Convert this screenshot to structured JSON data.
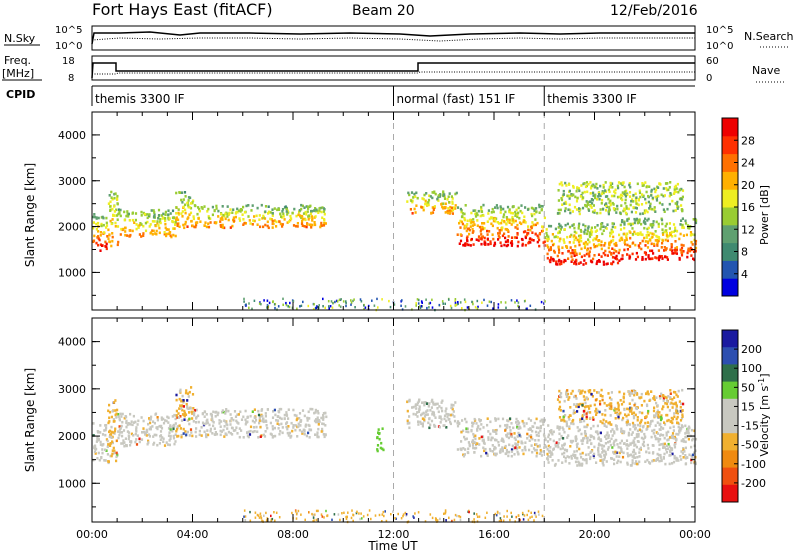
{
  "header": {
    "title": "Fort Hays East (fitACF)",
    "beam": "Beam 20",
    "date": "12/Feb/2016"
  },
  "labels": {
    "nsky": "N.Sky",
    "freq": "Freq.",
    "mhz": "[MHz]",
    "cpid": "CPID",
    "nsearch": "N.Search",
    "nave": "Nave",
    "x_axis": "Time UT",
    "y_axis_power": "Slant Range [km]",
    "y_axis_velocity": "Slant Range [km]"
  },
  "noise_panel": {
    "left_ticks": [
      "10^5",
      "10^0"
    ],
    "right_ticks": [
      "10^5",
      "10^0"
    ]
  },
  "freq_panel": {
    "left_ticks": [
      "18",
      "8"
    ],
    "right_ticks": [
      "60",
      "0"
    ]
  },
  "cpid_segments": [
    {
      "start_hour": 0.0,
      "end_hour": 12.0,
      "label": "themis 3300 IF"
    },
    {
      "start_hour": 12.0,
      "end_hour": 18.0,
      "label": "normal (fast) 151 IF"
    },
    {
      "start_hour": 18.0,
      "end_hour": 24.0,
      "label": "themis 3300 IF"
    }
  ],
  "colors": {
    "power_scale": [
      "#0000e0",
      "#2255b0",
      "#3f8a70",
      "#5fa070",
      "#99cc33",
      "#eeee22",
      "#ffb000",
      "#ff7000",
      "#ff3000",
      "#ee0000"
    ],
    "velocity_scale": [
      "#1a1aa0",
      "#2d4fb0",
      "#2f6f4a",
      "#66cc33",
      "#c8c8c0",
      "#c8c8c0",
      "#f0b030",
      "#f08a10",
      "#f05010",
      "#e81010"
    ]
  },
  "chart_data": [
    {
      "type": "heatmap",
      "name": "power",
      "xlabel": "Time UT",
      "ylabel": "Slant Range [km]",
      "xlim": [
        0,
        24
      ],
      "ylim": [
        180,
        4500
      ],
      "x_tick_labels": [
        "00:00",
        "04:00",
        "08:00",
        "12:00",
        "16:00",
        "20:00",
        "00:00"
      ],
      "x_tick_values": [
        0,
        4,
        8,
        12,
        16,
        20,
        24
      ],
      "y_tick_labels": [
        "1000",
        "2000",
        "3000",
        "4000"
      ],
      "y_tick_values": [
        1000,
        2000,
        3000,
        4000
      ],
      "colorbar": {
        "label": "Power [dB]",
        "range": [
          0,
          32
        ],
        "tick_labels": [
          "4",
          "8",
          "12",
          "16",
          "20",
          "24",
          "28"
        ],
        "tick_values": [
          4,
          8,
          12,
          16,
          20,
          24,
          28
        ]
      },
      "dashed_lines_hours": [
        12,
        18
      ],
      "echo_regions": [
        {
          "t0": 0.0,
          "t1": 0.6,
          "r_lo": 1500,
          "r_hi": 2300,
          "level": "high"
        },
        {
          "t0": 0.6,
          "t1": 1.0,
          "r_lo": 1600,
          "r_hi": 2800,
          "level": "mid"
        },
        {
          "t0": 1.0,
          "t1": 3.3,
          "r_lo": 1800,
          "r_hi": 2400,
          "level": "mid"
        },
        {
          "t0": 3.3,
          "t1": 4.0,
          "r_lo": 2000,
          "r_hi": 2800,
          "level": "mid"
        },
        {
          "t0": 4.0,
          "t1": 9.3,
          "r_lo": 2000,
          "r_hi": 2500,
          "level": "mid"
        },
        {
          "t0": 12.5,
          "t1": 14.5,
          "r_lo": 2300,
          "r_hi": 2800,
          "level": "mid"
        },
        {
          "t0": 14.5,
          "t1": 18.0,
          "r_lo": 1600,
          "r_hi": 2500,
          "level": "high"
        },
        {
          "t0": 18.0,
          "t1": 21.0,
          "r_lo": 1200,
          "r_hi": 2100,
          "level": "high"
        },
        {
          "t0": 21.0,
          "t1": 24.0,
          "r_lo": 1300,
          "r_hi": 2200,
          "level": "high"
        },
        {
          "t0": 18.5,
          "t1": 23.5,
          "r_lo": 2300,
          "r_hi": 3000,
          "level": "low"
        }
      ]
    },
    {
      "type": "heatmap",
      "name": "velocity",
      "xlabel": "Time UT",
      "ylabel": "Slant Range [km]",
      "xlim": [
        0,
        24
      ],
      "ylim": [
        180,
        4500
      ],
      "x_tick_labels": [
        "00:00",
        "04:00",
        "08:00",
        "12:00",
        "16:00",
        "20:00",
        "00:00"
      ],
      "x_tick_values": [
        0,
        4,
        8,
        12,
        16,
        20,
        24
      ],
      "y_tick_labels": [
        "1000",
        "2000",
        "3000",
        "4000"
      ],
      "y_tick_values": [
        1000,
        2000,
        3000,
        4000
      ],
      "colorbar": {
        "label": "Velocity [m s",
        "label_sup": "-1",
        "label_close": "]",
        "tick_labels": [
          "200",
          "100",
          "50",
          "15",
          "-15",
          "-50",
          "-100",
          "-200"
        ]
      },
      "dashed_lines_hours": [
        12,
        18
      ],
      "echo_regions": [
        {
          "t0": 0.0,
          "t1": 0.6,
          "r_lo": 1500,
          "r_hi": 2300,
          "level": "ground"
        },
        {
          "t0": 0.6,
          "t1": 1.0,
          "r_lo": 1400,
          "r_hi": 2800,
          "level": "away"
        },
        {
          "t0": 1.0,
          "t1": 3.3,
          "r_lo": 1800,
          "r_hi": 2500,
          "level": "ground"
        },
        {
          "t0": 3.3,
          "t1": 4.0,
          "r_lo": 2000,
          "r_hi": 3100,
          "level": "away"
        },
        {
          "t0": 4.0,
          "t1": 9.3,
          "r_lo": 2000,
          "r_hi": 2600,
          "level": "ground"
        },
        {
          "t0": 12.5,
          "t1": 14.5,
          "r_lo": 2200,
          "r_hi": 2800,
          "level": "ground"
        },
        {
          "t0": 14.5,
          "t1": 18.0,
          "r_lo": 1600,
          "r_hi": 2400,
          "level": "ground"
        },
        {
          "t0": 18.0,
          "t1": 24.0,
          "r_lo": 1400,
          "r_hi": 2300,
          "level": "ground"
        },
        {
          "t0": 18.5,
          "t1": 23.5,
          "r_lo": 2300,
          "r_hi": 3000,
          "level": "away"
        },
        {
          "t0": 11.3,
          "t1": 11.6,
          "r_lo": 1700,
          "r_hi": 2200,
          "level": "toward"
        }
      ]
    }
  ]
}
